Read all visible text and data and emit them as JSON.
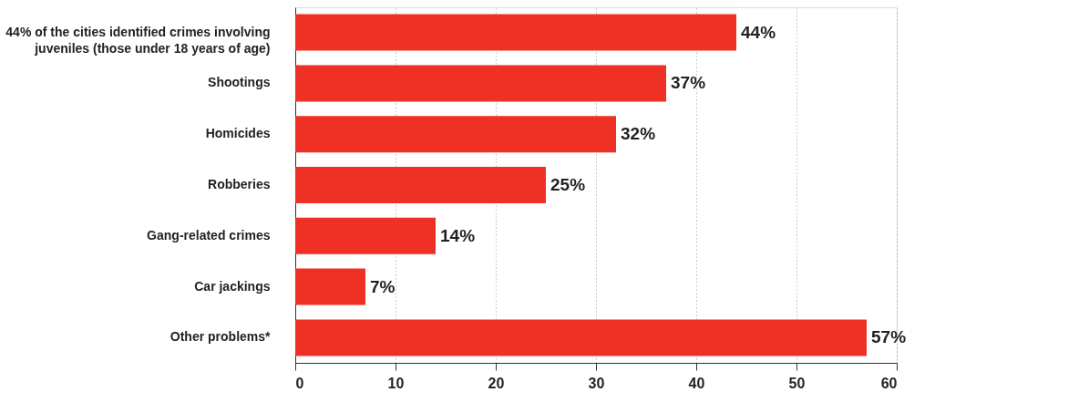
{
  "chart_data": {
    "type": "bar",
    "orientation": "horizontal",
    "categories": [
      "44% of the cities identified crimes involving juveniles (those under 18 years of age)",
      "Shootings",
      "Homicides",
      "Robberies",
      "Gang-related crimes",
      "Car jackings",
      "Other problems*"
    ],
    "values": [
      44,
      37,
      32,
      25,
      14,
      7,
      57
    ],
    "value_labels": [
      "44%",
      "37%",
      "32%",
      "25%",
      "14%",
      "7%",
      "57%"
    ],
    "color": "#ee3124",
    "xlim": [
      0,
      60
    ],
    "xticks": [
      0,
      10,
      20,
      30,
      40,
      50,
      60
    ],
    "grid": "x"
  }
}
